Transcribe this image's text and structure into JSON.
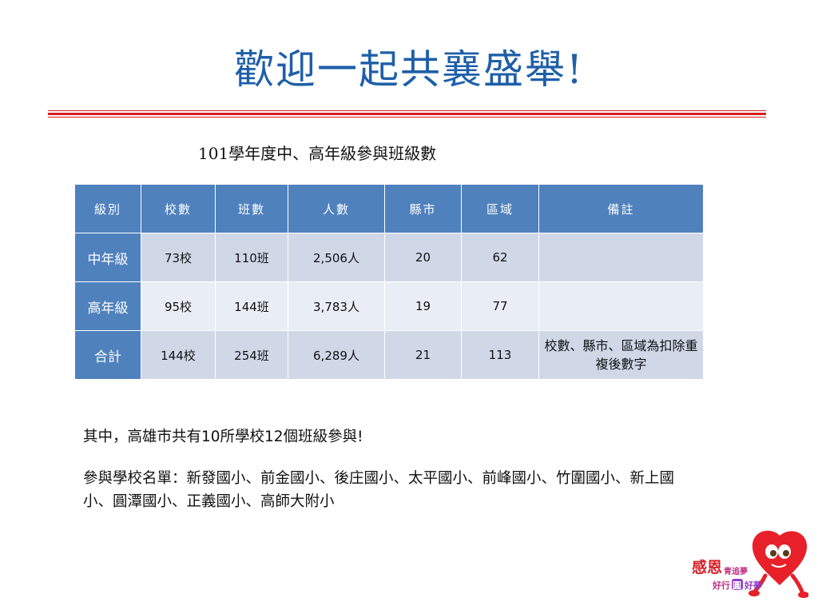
{
  "title": "歡迎一起共襄盛舉!",
  "subtitle": "101學年度中、高年級參與班級數",
  "table": {
    "headers": [
      "級別",
      "校數",
      "班數",
      "人數",
      "縣市",
      "區域",
      "備註"
    ],
    "rows": [
      [
        "中年級",
        "73校",
        "110班",
        "2,506人",
        "20",
        "62",
        ""
      ],
      [
        "高年級",
        "95校",
        "144班",
        "3,783人",
        "19",
        "77",
        ""
      ],
      [
        "合計",
        "144校",
        "254班",
        "6,289人",
        "21",
        "113",
        "校數、縣市、區域為扣除重複後數字"
      ]
    ]
  },
  "body": {
    "line1": "其中，高雄市共有10所學校12個班級參與!",
    "line2": "參與學校名單：新發國小、前金國小、後庄國小、太平國小、前峰國小、竹圍國小、新上國小、圓潭國小、正義國小、高師大附小"
  },
  "logo": {
    "text_main": "感恩",
    "text_a": "青追夢",
    "text_b": "好行",
    "text_c": "圓",
    "text_d": "好夢"
  },
  "colors": {
    "title": "#1f5fa8",
    "rule": "#d61f1f",
    "header_bg": "#4f81bd",
    "row_dark": "#d0d8e8",
    "row_light": "#e9edf4",
    "heart": "#e8202a"
  }
}
